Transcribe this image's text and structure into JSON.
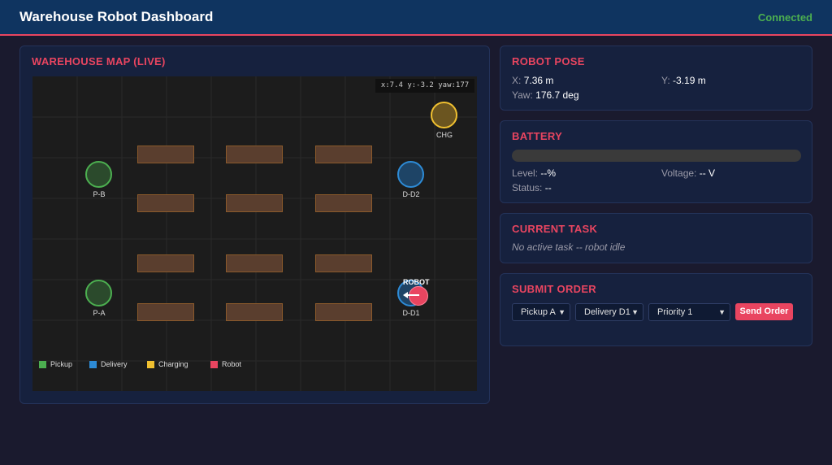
{
  "header": {
    "title": "Warehouse Robot Dashboard",
    "connection_status": "Connected"
  },
  "map": {
    "title": "WAREHOUSE MAP (LIVE)",
    "coord_readout": "x:7.4 y:-3.2 yaw:177",
    "stations": {
      "charging": "CHG",
      "pickup_b": "P-B",
      "delivery_d2": "D-D2",
      "pickup_a": "P-A",
      "delivery_d1": "D-D1"
    },
    "robot_label": "ROBOT",
    "legend": {
      "pickup": "Pickup",
      "delivery": "Delivery",
      "charging": "Charging",
      "robot": "Robot"
    }
  },
  "pose": {
    "title": "ROBOT POSE",
    "x_label": "X:",
    "x_value": "7.36 m",
    "y_label": "Y:",
    "y_value": "-3.19 m",
    "yaw_label": "Yaw:",
    "yaw_value": "176.7 deg"
  },
  "battery": {
    "title": "BATTERY",
    "level_label": "Level:",
    "level_value": "--%",
    "voltage_label": "Voltage:",
    "voltage_value": "-- V",
    "status_label": "Status:",
    "status_value": "--",
    "fill_fraction": 0
  },
  "task": {
    "title": "CURRENT TASK",
    "text": "No active task -- robot idle"
  },
  "order": {
    "title": "SUBMIT ORDER",
    "pickup_selected": "Pickup A",
    "delivery_selected": "Delivery D1",
    "priority_selected": "Priority 1",
    "send_label": "Send Order"
  },
  "colors": {
    "accent": "#e94560",
    "header_bg": "#0f3460",
    "panel_bg": "#16213e",
    "pickup": "#4caf50",
    "delivery": "#2d8bd6",
    "charging": "#f0c030",
    "robot": "#e94560",
    "connected": "#4caf50"
  },
  "icons": {
    "robot_heading": "heading-arrow-icon",
    "select_caret": "chevron-down-icon"
  }
}
